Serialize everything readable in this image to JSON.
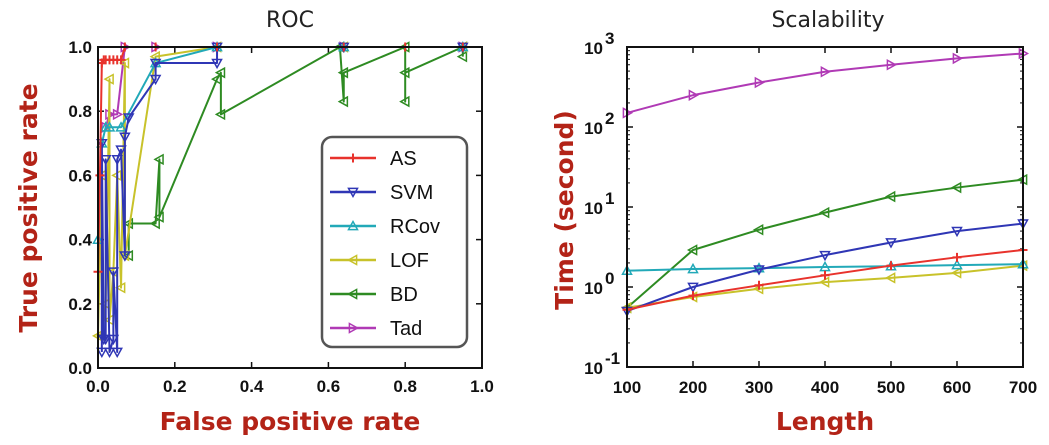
{
  "chart_data": [
    {
      "type": "line",
      "title": "ROC",
      "xlabel": "False positive rate",
      "ylabel": "True positive rate",
      "xlim": [
        0,
        1.0
      ],
      "ylim": [
        0,
        1.0
      ],
      "xticks": [
        "0.0",
        "0.2",
        "0.4",
        "0.6",
        "0.8",
        "1.0"
      ],
      "yticks": [
        "0.0",
        "0.2",
        "0.4",
        "0.6",
        "0.8",
        "1.0"
      ],
      "grid": false,
      "legend_position": "center-right",
      "series": [
        {
          "name": "AS",
          "color": "#e8322c",
          "marker": "plus",
          "x": [
            0.0,
            0.005,
            0.01,
            0.015,
            0.02,
            0.03,
            0.04,
            0.05,
            0.06,
            0.07,
            0.15,
            0.31,
            0.64,
            0.8,
            0.95
          ],
          "y": [
            0.3,
            0.6,
            0.95,
            0.96,
            0.96,
            0.96,
            0.96,
            0.96,
            0.96,
            1.0,
            1.0,
            1.0,
            1.0,
            1.0,
            1.0
          ]
        },
        {
          "name": "SVM",
          "color": "#2f36b5",
          "marker": "triangle-down",
          "x": [
            0.01,
            0.01,
            0.015,
            0.02,
            0.02,
            0.03,
            0.04,
            0.04,
            0.05,
            0.05,
            0.06,
            0.07,
            0.07,
            0.08,
            0.15,
            0.15,
            0.31,
            0.31,
            0.64,
            0.95
          ],
          "y": [
            0.05,
            0.7,
            0.09,
            0.09,
            0.65,
            0.05,
            0.09,
            0.3,
            0.05,
            0.65,
            0.68,
            0.35,
            0.72,
            0.78,
            0.9,
            0.95,
            0.95,
            1.0,
            1.0,
            1.0
          ]
        },
        {
          "name": "RCov",
          "color": "#22a9b8",
          "marker": "triangle-up",
          "x": [
            0.0,
            0.01,
            0.02,
            0.03,
            0.06,
            0.15,
            0.31,
            0.64,
            0.95
          ],
          "y": [
            0.4,
            0.7,
            0.75,
            0.75,
            0.75,
            0.95,
            1.0,
            1.0,
            1.0
          ]
        },
        {
          "name": "LOF",
          "color": "#c8c22a",
          "marker": "triangle-left",
          "x": [
            0.0,
            0.01,
            0.01,
            0.02,
            0.03,
            0.03,
            0.04,
            0.05,
            0.06,
            0.07,
            0.07,
            0.15,
            0.31,
            0.64,
            0.95
          ],
          "y": [
            0.1,
            0.6,
            0.1,
            0.2,
            0.9,
            0.15,
            0.3,
            0.6,
            0.25,
            0.95,
            0.35,
            0.97,
            1.0,
            1.0,
            1.0
          ]
        },
        {
          "name": "BD",
          "color": "#2e8b22",
          "marker": "triangle-left",
          "x": [
            0.08,
            0.08,
            0.15,
            0.16,
            0.16,
            0.31,
            0.32,
            0.32,
            0.63,
            0.64,
            0.64,
            0.8,
            0.8,
            0.8,
            0.95,
            0.95
          ],
          "y": [
            0.35,
            0.45,
            0.45,
            0.65,
            0.47,
            0.9,
            0.92,
            0.79,
            1.0,
            0.83,
            0.92,
            1.0,
            0.83,
            0.92,
            1.0,
            0.97
          ]
        },
        {
          "name": "Tad",
          "color": "#b03ab5",
          "marker": "triangle-right",
          "x": [
            0.02,
            0.03,
            0.05,
            0.07,
            0.15,
            0.31,
            0.64,
            0.95
          ],
          "y": [
            0.75,
            0.79,
            0.79,
            1.0,
            1.0,
            1.0,
            1.0,
            1.0
          ]
        }
      ]
    },
    {
      "type": "line",
      "title": "Scalability",
      "xlabel": "Length",
      "ylabel": "Time (second)",
      "xlim": [
        100,
        700
      ],
      "ylim": [
        0.1,
        1000
      ],
      "yscale": "log",
      "xticks": [
        "100",
        "200",
        "300",
        "400",
        "500",
        "600",
        "700"
      ],
      "yticks": [
        {
          "base": "10",
          "exp": "-1"
        },
        {
          "base": "10",
          "exp": "0"
        },
        {
          "base": "10",
          "exp": "1"
        },
        {
          "base": "10",
          "exp": "2"
        },
        {
          "base": "10",
          "exp": "3"
        }
      ],
      "grid": false,
      "x": [
        100,
        200,
        300,
        400,
        500,
        600,
        700
      ],
      "series": [
        {
          "name": "AS",
          "color": "#e8322c",
          "marker": "plus",
          "values": [
            0.52,
            0.78,
            1.05,
            1.4,
            1.85,
            2.35,
            2.9
          ]
        },
        {
          "name": "SVM",
          "color": "#2f36b5",
          "marker": "triangle-down",
          "values": [
            0.5,
            1.0,
            1.65,
            2.5,
            3.6,
            5.0,
            6.2
          ]
        },
        {
          "name": "RCov",
          "color": "#22a9b8",
          "marker": "triangle-up",
          "values": [
            1.6,
            1.68,
            1.72,
            1.78,
            1.82,
            1.88,
            1.93
          ]
        },
        {
          "name": "LOF",
          "color": "#c8c22a",
          "marker": "triangle-left",
          "values": [
            0.55,
            0.75,
            0.95,
            1.15,
            1.3,
            1.5,
            1.85
          ]
        },
        {
          "name": "BD",
          "color": "#2e8b22",
          "marker": "triangle-left",
          "values": [
            0.55,
            2.9,
            5.2,
            8.5,
            13.5,
            17.5,
            22
          ]
        },
        {
          "name": "Tad",
          "color": "#b03ab5",
          "marker": "triangle-right",
          "values": [
            150,
            250,
            360,
            490,
            600,
            720,
            830
          ]
        }
      ]
    }
  ]
}
